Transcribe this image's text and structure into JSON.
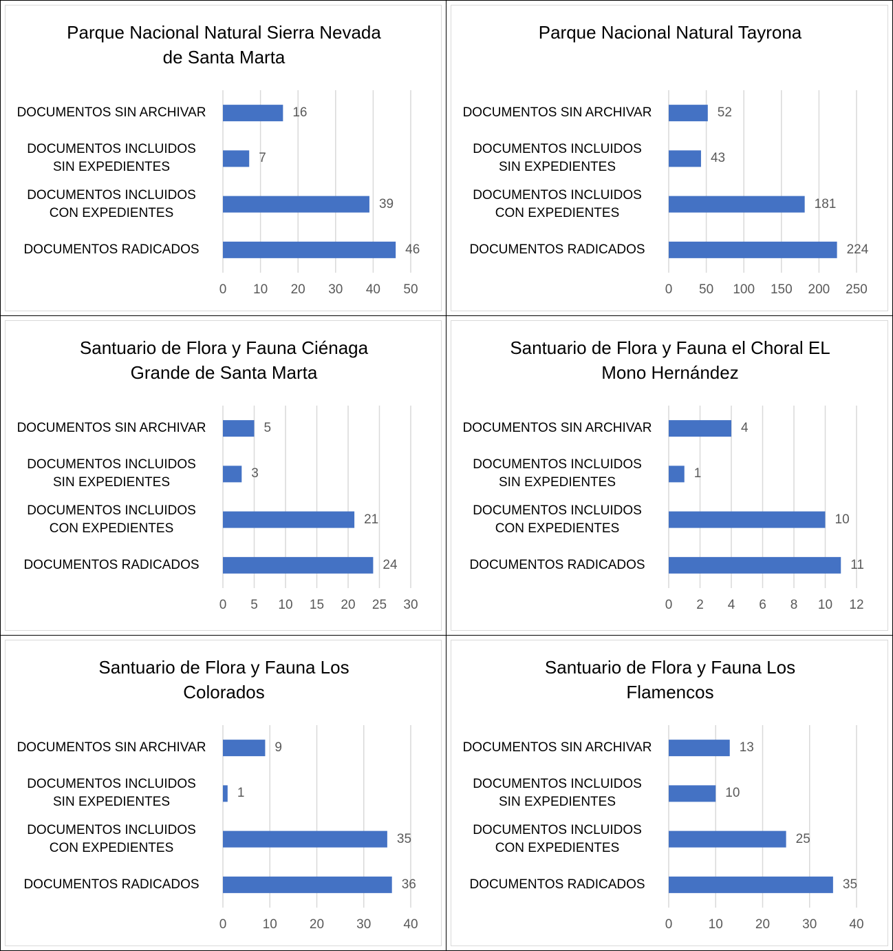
{
  "chart_data": [
    {
      "type": "bar",
      "orientation": "horizontal",
      "title": "Parque Nacional Natural Sierra Nevada de Santa Marta",
      "categories": [
        "DOCUMENTOS SIN ARCHIVAR",
        "DOCUMENTOS INCLUIDOS SIN EXPEDIENTES",
        "DOCUMENTOS INCLUIDOS CON EXPEDIENTES",
        "DOCUMENTOS RADICADOS"
      ],
      "values": [
        16,
        7,
        39,
        46
      ],
      "color": "#4472c4",
      "xlim": [
        0,
        50
      ],
      "xticks": [
        0,
        10,
        20,
        30,
        40,
        50
      ],
      "grid": true
    },
    {
      "type": "bar",
      "orientation": "horizontal",
      "title": "Parque Nacional Natural Tayrona",
      "categories": [
        "DOCUMENTOS SIN ARCHIVAR",
        "DOCUMENTOS INCLUIDOS SIN EXPEDIENTES",
        "DOCUMENTOS INCLUIDOS CON EXPEDIENTES",
        "DOCUMENTOS RADICADOS"
      ],
      "values": [
        52,
        43,
        181,
        224
      ],
      "color": "#4472c4",
      "xlim": [
        0,
        250
      ],
      "xticks": [
        0,
        50,
        100,
        150,
        200,
        250
      ],
      "grid": true
    },
    {
      "type": "bar",
      "orientation": "horizontal",
      "title": "Santuario de Flora y Fauna Ciénaga Grande de Santa Marta",
      "categories": [
        "DOCUMENTOS SIN ARCHIVAR",
        "DOCUMENTOS INCLUIDOS SIN EXPEDIENTES",
        "DOCUMENTOS INCLUIDOS CON EXPEDIENTES",
        "DOCUMENTOS RADICADOS"
      ],
      "values": [
        5,
        3,
        21,
        24
      ],
      "color": "#4472c4",
      "xlim": [
        0,
        30
      ],
      "xticks": [
        0,
        5,
        10,
        15,
        20,
        25,
        30
      ],
      "grid": true
    },
    {
      "type": "bar",
      "orientation": "horizontal",
      "title": "Santuario de Flora y Fauna el Choral EL Mono Hernández",
      "categories": [
        "DOCUMENTOS SIN ARCHIVAR",
        "DOCUMENTOS INCLUIDOS SIN EXPEDIENTES",
        "DOCUMENTOS INCLUIDOS CON EXPEDIENTES",
        "DOCUMENTOS RADICADOS"
      ],
      "values": [
        4,
        1,
        10,
        11
      ],
      "color": "#4472c4",
      "xlim": [
        0,
        12
      ],
      "xticks": [
        0,
        2,
        4,
        6,
        8,
        10,
        12
      ],
      "grid": true
    },
    {
      "type": "bar",
      "orientation": "horizontal",
      "title": "Santuario de Flora y Fauna Los Colorados",
      "categories": [
        "DOCUMENTOS SIN ARCHIVAR",
        "DOCUMENTOS INCLUIDOS SIN EXPEDIENTES",
        "DOCUMENTOS INCLUIDOS CON EXPEDIENTES",
        "DOCUMENTOS RADICADOS"
      ],
      "values": [
        9,
        1,
        35,
        36
      ],
      "color": "#4472c4",
      "xlim": [
        0,
        40
      ],
      "xticks": [
        0,
        10,
        20,
        30,
        40
      ],
      "grid": true
    },
    {
      "type": "bar",
      "orientation": "horizontal",
      "title": "Santuario de Flora y Fauna Los Flamencos",
      "categories": [
        "DOCUMENTOS SIN ARCHIVAR",
        "DOCUMENTOS INCLUIDOS SIN EXPEDIENTES",
        "DOCUMENTOS INCLUIDOS CON EXPEDIENTES",
        "DOCUMENTOS RADICADOS"
      ],
      "values": [
        13,
        10,
        25,
        35
      ],
      "color": "#4472c4",
      "xlim": [
        0,
        40
      ],
      "xticks": [
        0,
        10,
        20,
        30,
        40
      ],
      "grid": true
    }
  ]
}
